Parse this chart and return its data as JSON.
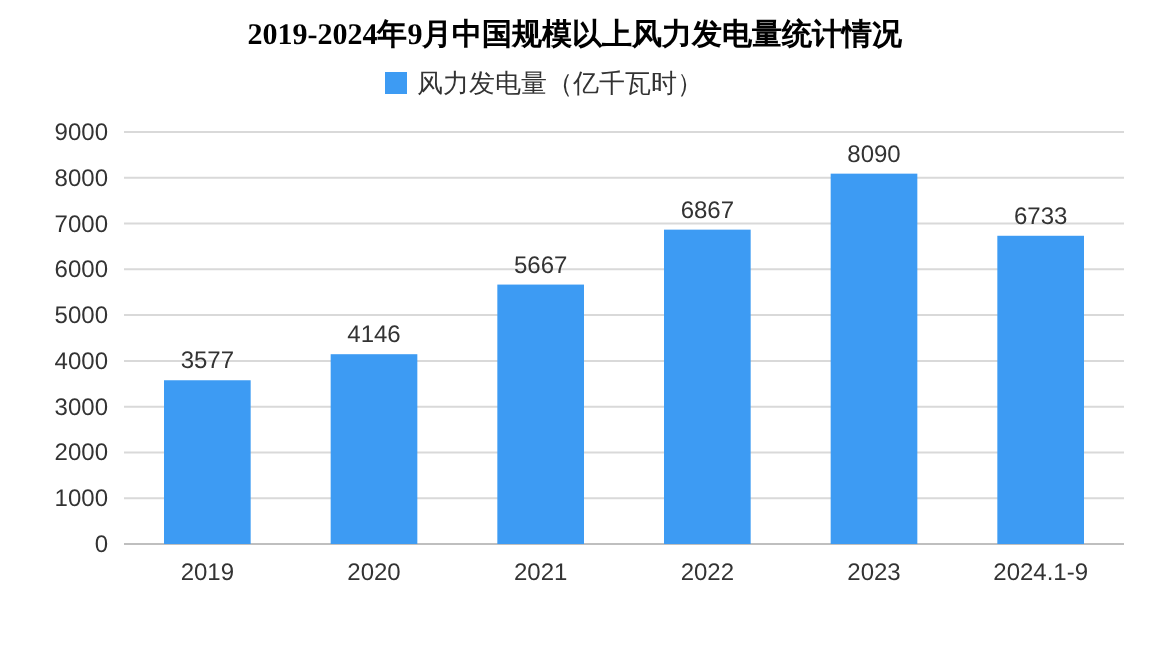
{
  "chart_data": {
    "type": "bar",
    "title": "2019-2024年9月中国规模以上风力发电量统计情况",
    "categories": [
      "2019",
      "2020",
      "2021",
      "2022",
      "2023",
      "2024.1-9"
    ],
    "series": [
      {
        "name": "风力发电量（亿千瓦时）",
        "color": "#3d9bf3",
        "values": [
          3577,
          4146,
          5667,
          6867,
          8090,
          6733
        ]
      }
    ],
    "ylim": [
      0,
      9000
    ],
    "yticks": [
      0,
      1000,
      2000,
      3000,
      4000,
      5000,
      6000,
      7000,
      8000,
      9000
    ],
    "grid": "y",
    "legend": "top",
    "data_labels": true
  }
}
